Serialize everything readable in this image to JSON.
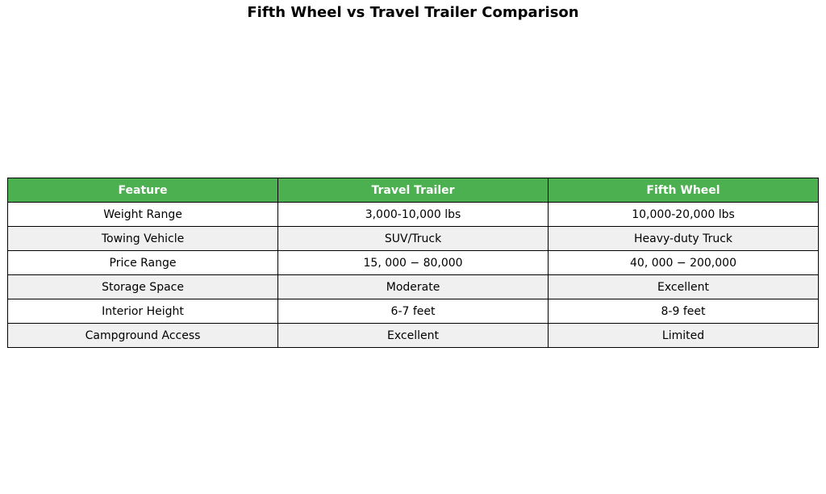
{
  "chart_data": {
    "type": "table",
    "title": "Fifth Wheel vs Travel Trailer Comparison",
    "header_color": "#4caf50",
    "columns": [
      "Feature",
      "Travel Trailer",
      "Fifth Wheel"
    ],
    "rows": [
      [
        "Weight Range",
        "3,000-10,000 lbs",
        "10,000-20,000 lbs"
      ],
      [
        "Towing Vehicle",
        "SUV/Truck",
        "Heavy-duty Truck"
      ],
      [
        "Price Range",
        "15, 000 − 80,000",
        "40, 000 − 200,000"
      ],
      [
        "Storage Space",
        "Moderate",
        "Excellent"
      ],
      [
        "Interior Height",
        "6-7 feet",
        "8-9 feet"
      ],
      [
        "Campground Access",
        "Excellent",
        "Limited"
      ]
    ]
  }
}
